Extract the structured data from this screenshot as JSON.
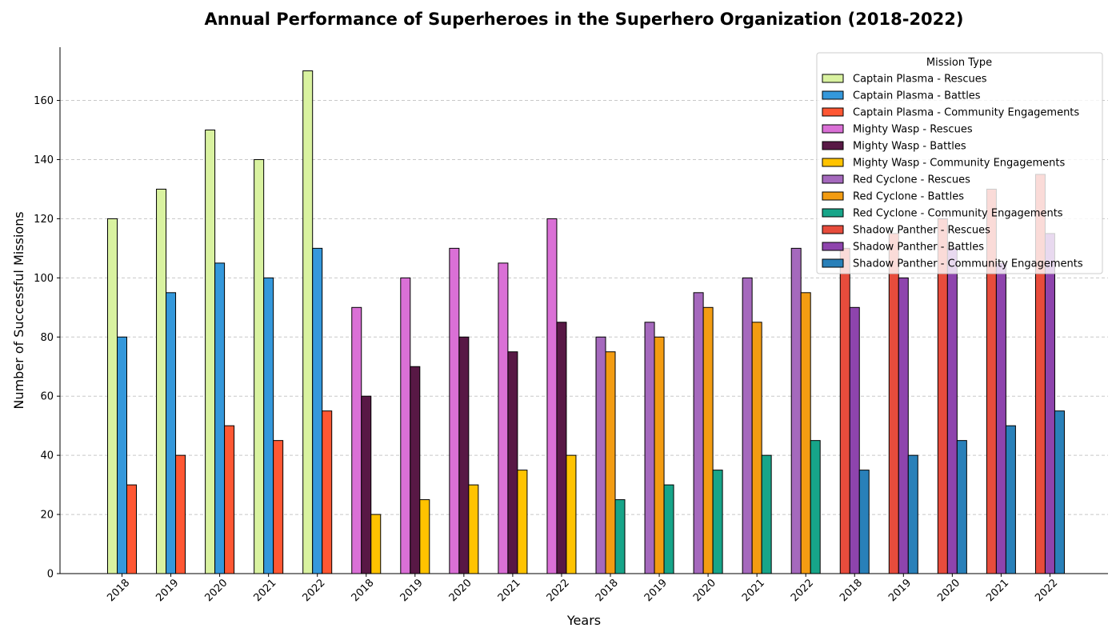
{
  "chart_data": {
    "type": "bar",
    "title": "Annual Performance of Superheroes in the Superhero Organization (2018-2022)",
    "xlabel": "Years",
    "ylabel": "Number of Successful Missions",
    "ylim": [
      0,
      178
    ],
    "yticks": [
      0,
      20,
      40,
      60,
      80,
      100,
      120,
      140,
      160
    ],
    "grid": "y-dashed",
    "legend_title": "Mission Type",
    "legend_position": "top-right",
    "groups": [
      {
        "hero": "Captain Plasma",
        "years": [
          "2018",
          "2019",
          "2020",
          "2021",
          "2022"
        ],
        "series": [
          {
            "name": "Captain Plasma - Rescues",
            "color": "#d9f2a0",
            "alpha": 1,
            "values": [
              120,
              130,
              150,
              140,
              170
            ]
          },
          {
            "name": "Captain Plasma - Battles",
            "color": "#3498db",
            "alpha": 1,
            "values": [
              80,
              95,
              105,
              100,
              110
            ]
          },
          {
            "name": "Captain Plasma - Community Engagements",
            "color": "#ff5733",
            "alpha": 1,
            "values": [
              30,
              40,
              50,
              45,
              55
            ]
          }
        ]
      },
      {
        "hero": "Mighty Wasp",
        "years": [
          "2018",
          "2019",
          "2020",
          "2021",
          "2022"
        ],
        "series": [
          {
            "name": "Mighty Wasp - Rescues",
            "color": "#da70d6",
            "alpha": 1,
            "values": [
              90,
              100,
              110,
              105,
              120
            ]
          },
          {
            "name": "Mighty Wasp - Battles",
            "color": "#581845",
            "alpha": 1,
            "values": [
              60,
              70,
              80,
              75,
              85
            ]
          },
          {
            "name": "Mighty Wasp - Community Engagements",
            "color": "#ffc300",
            "alpha": 1,
            "values": [
              20,
              25,
              30,
              35,
              40
            ]
          }
        ]
      },
      {
        "hero": "Red Cyclone",
        "years": [
          "2018",
          "2019",
          "2020",
          "2021",
          "2022"
        ],
        "series": [
          {
            "name": "Red Cyclone - Rescues",
            "color": "#a569bd",
            "alpha": 1,
            "values": [
              80,
              85,
              95,
              100,
              110
            ]
          },
          {
            "name": "Red Cyclone - Battles",
            "color": "#f39c12",
            "alpha": 1,
            "values": [
              75,
              80,
              90,
              85,
              95
            ]
          },
          {
            "name": "Red Cyclone - Community Engagements",
            "color": "#17a589",
            "alpha": 1,
            "values": [
              25,
              30,
              35,
              40,
              45
            ]
          }
        ]
      },
      {
        "hero": "Shadow Panther",
        "years": [
          "2018",
          "2019",
          "2020",
          "2021",
          "2022"
        ],
        "series": [
          {
            "name": "Shadow Panther - Rescues",
            "color": "#e74c3c",
            "alpha": 1,
            "values": [
              110,
              115,
              120,
              130,
              135
            ]
          },
          {
            "name": "Shadow Panther - Battles",
            "color": "#8e44ad",
            "alpha": 1,
            "values": [
              90,
              100,
              110,
              105,
              115
            ]
          },
          {
            "name": "Shadow Panther - Community Engagements",
            "color": "#2980b9",
            "alpha": 1,
            "values": [
              35,
              40,
              45,
              50,
              55
            ]
          }
        ]
      }
    ]
  }
}
